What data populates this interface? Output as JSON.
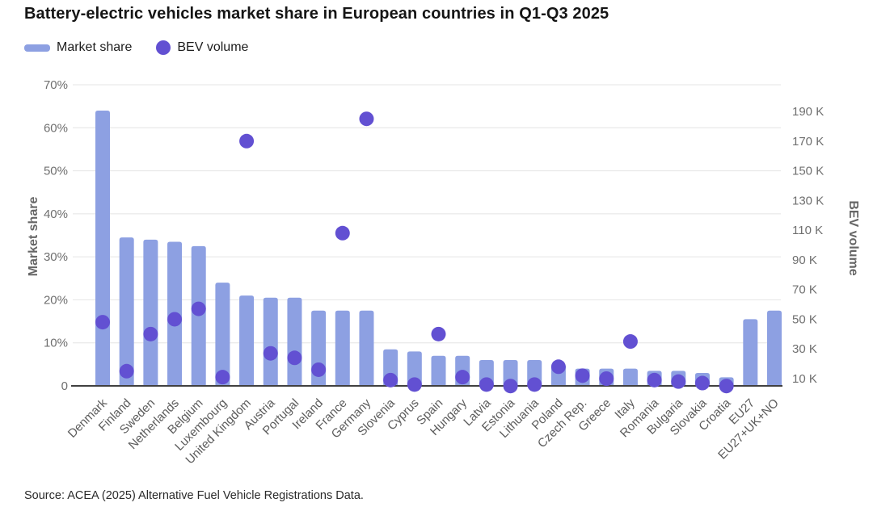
{
  "title": "Battery-electric vehicles market share in European countries in Q1-Q3 2025",
  "legend": {
    "market_share_label": "Market share",
    "bev_volume_label": "BEV volume"
  },
  "source": "Source: ACEA (2025) Alternative Fuel Vehicle Registrations Data.",
  "colors": {
    "bar": "#8da0e2",
    "dot": "#6250d2",
    "grid": "#e4e4e4",
    "baseline": "#404040",
    "axis_text": "#6f6f6f",
    "category_text": "#5c5c5c",
    "axis_title": "#666666"
  },
  "chart_data": {
    "type": "bar",
    "title": "Battery-electric vehicles market share in European countries in Q1-Q3 2025",
    "categories": [
      "Denmark",
      "Finland",
      "Sweden",
      "Netherlands",
      "Belgium",
      "Luxembourg",
      "United Kingdom",
      "Austria",
      "Portugal",
      "Ireland",
      "France",
      "Germany",
      "Slovenia",
      "Cyprus",
      "Spain",
      "Hungary",
      "Latvia",
      "Estonia",
      "Lithuania",
      "Poland",
      "Czech Rep.",
      "Greece",
      "Italy",
      "Romania",
      "Bulgaria",
      "Slovakia",
      "Croatia",
      "EU27",
      "EU27+UK+NO"
    ],
    "series": [
      {
        "name": "Market share",
        "type": "bar",
        "axis": "left",
        "unit": "%",
        "values": [
          64,
          34.5,
          34,
          33.5,
          32.5,
          24,
          21,
          20.5,
          20.5,
          17.5,
          17.5,
          17.5,
          8.5,
          8,
          7,
          7,
          6,
          6,
          6,
          5,
          4,
          4,
          4,
          3.5,
          3.5,
          3,
          2,
          15.5,
          17.5
        ]
      },
      {
        "name": "BEV volume",
        "type": "scatter",
        "axis": "right",
        "unit": "K",
        "values": [
          48,
          15,
          40,
          50,
          57,
          11,
          170,
          27,
          24,
          16,
          108,
          185,
          9,
          6,
          40,
          11,
          6,
          5,
          6,
          18,
          12,
          10,
          35,
          9,
          8,
          7,
          5,
          null,
          null
        ]
      }
    ],
    "left_axis": {
      "label": "Market share",
      "min": 0,
      "max": 70,
      "tick_values": [
        0,
        10,
        20,
        30,
        40,
        50,
        60,
        70
      ],
      "tick_labels": [
        "0",
        "10%",
        "20%",
        "30%",
        "40%",
        "50%",
        "60%",
        "70%"
      ],
      "grid": true
    },
    "right_axis": {
      "label": "BEV volume",
      "min": 0,
      "max": 196,
      "tick_values": [
        10,
        30,
        50,
        70,
        90,
        110,
        130,
        150,
        170,
        190
      ],
      "tick_labels": [
        "10 K",
        "30 K",
        "50 K",
        "70 K",
        "90 K",
        "110 K",
        "130 K",
        "150 K",
        "170 K",
        "190 K"
      ],
      "grid": false
    },
    "legend_position": "top-left"
  }
}
